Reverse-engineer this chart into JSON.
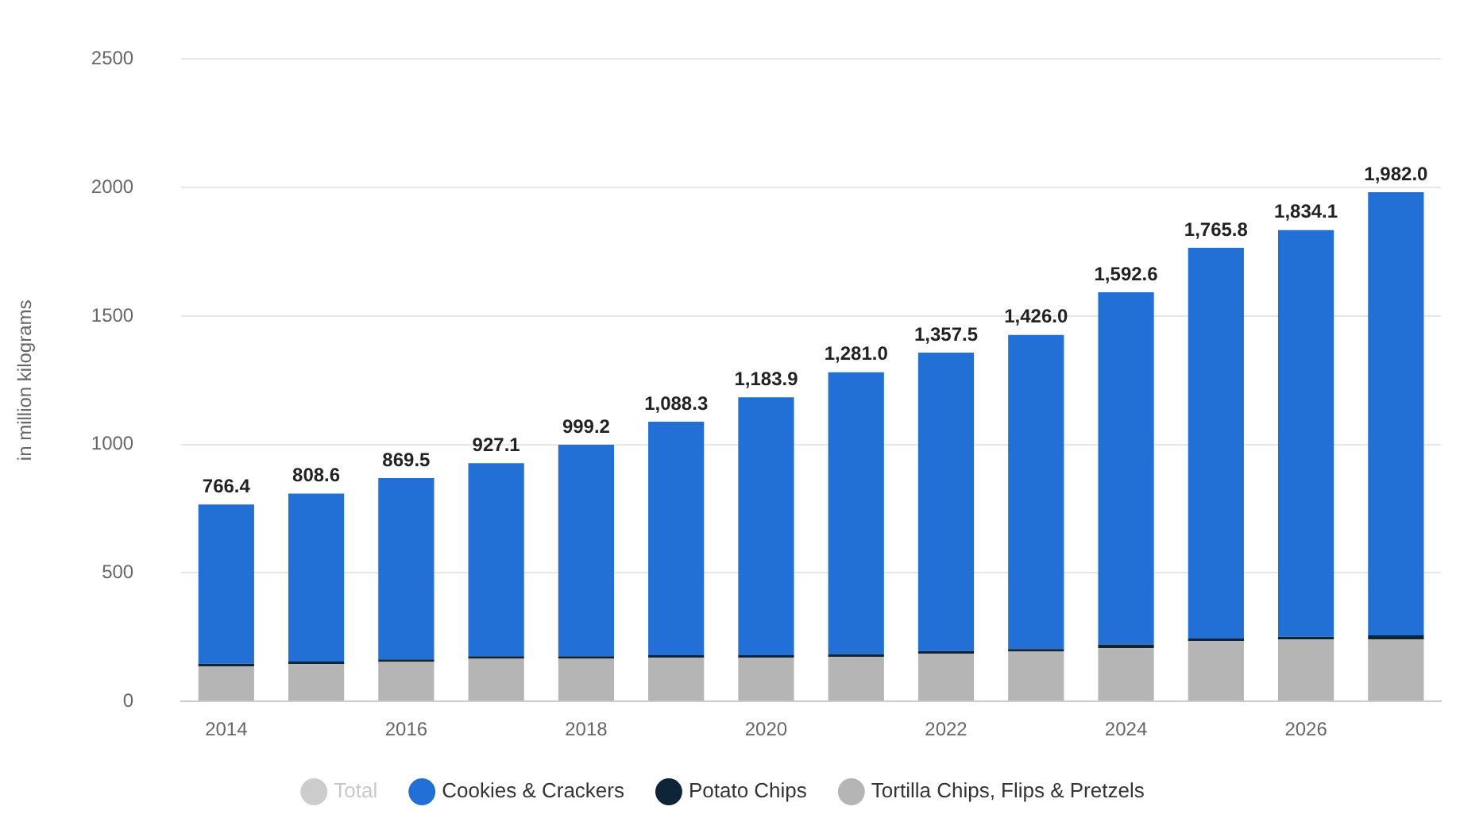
{
  "chart_data": {
    "type": "bar",
    "stacked": true,
    "ylabel": "in million kilograms",
    "categories": [
      "2014",
      null,
      "2016",
      null,
      "2018",
      null,
      "2020",
      null,
      "2022",
      null,
      "2024",
      null,
      "2026",
      null
    ],
    "series": [
      {
        "name": "Total",
        "color": "#cccccc",
        "values": [
          null,
          null,
          null,
          null,
          null,
          null,
          null,
          null,
          null,
          null,
          null,
          null,
          null,
          null
        ]
      },
      {
        "name": "Tortilla Chips, Flips & Pretzels",
        "color": "#b5b5b5",
        "values": [
          137,
          145,
          154,
          166,
          166,
          170,
          170,
          174,
          186,
          194,
          207,
          235,
          242,
          242
        ]
      },
      {
        "name": "Potato Chips",
        "color": "#0e2439",
        "values": [
          10,
          10,
          10,
          10,
          10,
          10,
          10,
          10,
          10,
          10,
          15,
          10,
          10,
          15
        ]
      },
      {
        "name": "Cookies & Crackers",
        "color": "#2270d6",
        "values": [
          619.4,
          653.6,
          705.5,
          751.1,
          823.2,
          908.3,
          1003.9,
          1097.0,
          1161.5,
          1222.0,
          1370.6,
          1520.8,
          1582.1,
          1725.0
        ]
      }
    ],
    "totals": [
      "766.4",
      "808.6",
      "869.5",
      "927.1",
      "999.2",
      "1,088.3",
      "1,183.9",
      "1,281.0",
      "1,357.5",
      "1,426.0",
      "1,592.6",
      "1,765.8",
      "1,834.1",
      "1,982.0"
    ],
    "ylim": [
      0,
      2500
    ],
    "yticks": [
      0,
      500,
      1000,
      1500,
      2000,
      2500
    ],
    "grid": "y",
    "legend": "bottom"
  }
}
